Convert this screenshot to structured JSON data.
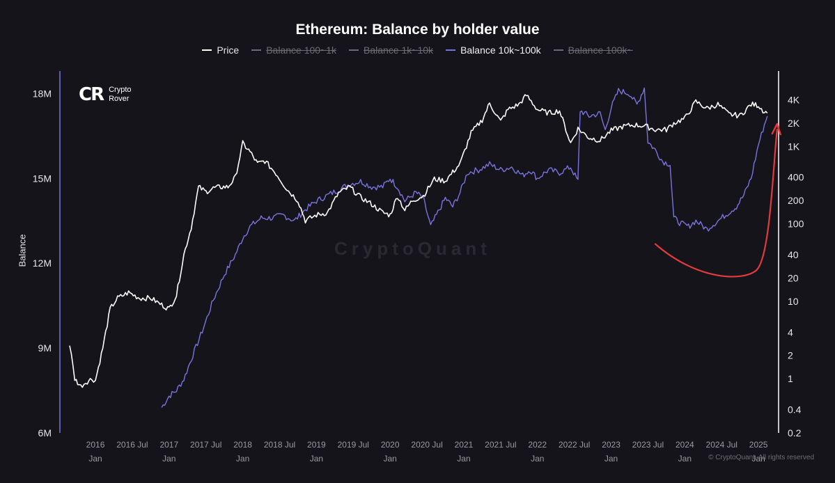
{
  "chart_data": {
    "type": "line",
    "title": "Ethereum: Balance by holder value",
    "ylabel_left": "Balance",
    "ylabel_right": "",
    "legend": [
      {
        "name": "Price",
        "color": "#ffffff",
        "visible": true
      },
      {
        "name": "Balance 100~1k",
        "color": "#6c6b76",
        "visible": false
      },
      {
        "name": "Balance 1k~10k",
        "color": "#6c6b76",
        "visible": false
      },
      {
        "name": "Balance 10k~100k",
        "color": "#7b74e0",
        "visible": true
      },
      {
        "name": "Balance 100k~",
        "color": "#6c6b76",
        "visible": false
      }
    ],
    "x_ticks": [
      {
        "t": 2016.0,
        "label": "2016",
        "sub": "Jan"
      },
      {
        "t": 2016.5,
        "label": "2016 Jul",
        "sub": ""
      },
      {
        "t": 2017.0,
        "label": "2017",
        "sub": "Jan"
      },
      {
        "t": 2017.5,
        "label": "2017 Jul",
        "sub": ""
      },
      {
        "t": 2018.0,
        "label": "2018",
        "sub": "Jan"
      },
      {
        "t": 2018.5,
        "label": "2018 Jul",
        "sub": ""
      },
      {
        "t": 2019.0,
        "label": "2019",
        "sub": "Jan"
      },
      {
        "t": 2019.5,
        "label": "2019 Jul",
        "sub": ""
      },
      {
        "t": 2020.0,
        "label": "2020",
        "sub": "Jan"
      },
      {
        "t": 2020.5,
        "label": "2020 Jul",
        "sub": ""
      },
      {
        "t": 2021.0,
        "label": "2021",
        "sub": "Jan"
      },
      {
        "t": 2021.5,
        "label": "2021 Jul",
        "sub": ""
      },
      {
        "t": 2022.0,
        "label": "2022",
        "sub": "Jan"
      },
      {
        "t": 2022.5,
        "label": "2022 Jul",
        "sub": ""
      },
      {
        "t": 2023.0,
        "label": "2023",
        "sub": "Jan"
      },
      {
        "t": 2023.5,
        "label": "2023 Jul",
        "sub": ""
      },
      {
        "t": 2024.0,
        "label": "2024",
        "sub": "Jan"
      },
      {
        "t": 2024.5,
        "label": "2024 Jul",
        "sub": ""
      },
      {
        "t": 2025.0,
        "label": "2025",
        "sub": "Jan"
      }
    ],
    "xlim": [
      2015.65,
      2025.15
    ],
    "y_left": {
      "ticks": [
        {
          "v": 18,
          "label": "18M"
        },
        {
          "v": 15,
          "label": "15M"
        },
        {
          "v": 12,
          "label": "12M"
        },
        {
          "v": 9,
          "label": "9M"
        },
        {
          "v": 6,
          "label": "6M"
        }
      ],
      "ylim": [
        6,
        18.6
      ],
      "unit": "M"
    },
    "y_right": {
      "scale": "log",
      "ticks": [
        {
          "v": 4000,
          "label": "4K"
        },
        {
          "v": 2000,
          "label": "2K"
        },
        {
          "v": 1000,
          "label": "1K"
        },
        {
          "v": 400,
          "label": "400"
        },
        {
          "v": 200,
          "label": "200"
        },
        {
          "v": 100,
          "label": "100"
        },
        {
          "v": 40,
          "label": "40"
        },
        {
          "v": 20,
          "label": "20"
        },
        {
          "v": 10,
          "label": "10"
        },
        {
          "v": 4,
          "label": "4"
        },
        {
          "v": 2,
          "label": "2"
        },
        {
          "v": 1,
          "label": "1"
        },
        {
          "v": 0.4,
          "label": "0.4"
        },
        {
          "v": 0.2,
          "label": "0.2"
        }
      ],
      "ylim": [
        0.2,
        8000
      ]
    },
    "series": [
      {
        "name": "Balance 10k~100k",
        "axis": "left",
        "color": "#7b74e0",
        "points": [
          [
            2016.9,
            6.9
          ],
          [
            2017.0,
            7.3
          ],
          [
            2017.1,
            7.5
          ],
          [
            2017.2,
            7.9
          ],
          [
            2017.3,
            8.6
          ],
          [
            2017.45,
            9.6
          ],
          [
            2017.6,
            10.7
          ],
          [
            2017.75,
            11.6
          ],
          [
            2017.9,
            12.3
          ],
          [
            2018.0,
            12.9
          ],
          [
            2018.1,
            13.3
          ],
          [
            2018.25,
            13.6
          ],
          [
            2018.4,
            13.6
          ],
          [
            2018.55,
            13.7
          ],
          [
            2018.7,
            13.5
          ],
          [
            2018.85,
            13.9
          ],
          [
            2019.0,
            14.2
          ],
          [
            2019.15,
            14.4
          ],
          [
            2019.3,
            14.6
          ],
          [
            2019.45,
            14.8
          ],
          [
            2019.6,
            14.9
          ],
          [
            2019.75,
            14.7
          ],
          [
            2019.9,
            14.7
          ],
          [
            2020.0,
            15.0
          ],
          [
            2020.1,
            14.7
          ],
          [
            2020.2,
            14.2
          ],
          [
            2020.35,
            14.5
          ],
          [
            2020.45,
            14.3
          ],
          [
            2020.55,
            13.3
          ],
          [
            2020.65,
            13.8
          ],
          [
            2020.75,
            14.3
          ],
          [
            2020.85,
            14.0
          ],
          [
            2020.95,
            14.5
          ],
          [
            2021.05,
            15.2
          ],
          [
            2021.2,
            15.3
          ],
          [
            2021.35,
            15.5
          ],
          [
            2021.5,
            15.3
          ],
          [
            2021.65,
            15.4
          ],
          [
            2021.8,
            15.1
          ],
          [
            2021.9,
            15.3
          ],
          [
            2022.0,
            15.0
          ],
          [
            2022.15,
            15.3
          ],
          [
            2022.3,
            15.2
          ],
          [
            2022.45,
            15.4
          ],
          [
            2022.55,
            14.9
          ],
          [
            2022.58,
            17.4
          ],
          [
            2022.7,
            17.2
          ],
          [
            2022.85,
            17.3
          ],
          [
            2022.92,
            16.7
          ],
          [
            2023.0,
            17.5
          ],
          [
            2023.1,
            18.1
          ],
          [
            2023.25,
            18.0
          ],
          [
            2023.35,
            17.6
          ],
          [
            2023.45,
            18.2
          ],
          [
            2023.5,
            16.3
          ],
          [
            2023.6,
            16.0
          ],
          [
            2023.7,
            15.6
          ],
          [
            2023.8,
            15.5
          ],
          [
            2023.85,
            13.6
          ],
          [
            2023.95,
            13.4
          ],
          [
            2024.05,
            13.3
          ],
          [
            2024.15,
            13.5
          ],
          [
            2024.3,
            13.2
          ],
          [
            2024.45,
            13.5
          ],
          [
            2024.6,
            13.8
          ],
          [
            2024.7,
            14.0
          ],
          [
            2024.8,
            14.4
          ],
          [
            2024.9,
            15.0
          ],
          [
            2025.0,
            16.2
          ],
          [
            2025.08,
            16.9
          ],
          [
            2025.12,
            17.2
          ]
        ]
      },
      {
        "name": "Price",
        "axis": "right",
        "color": "#ffffff",
        "points": [
          [
            2015.65,
            2.8
          ],
          [
            2015.72,
            1.0
          ],
          [
            2015.8,
            0.8
          ],
          [
            2015.87,
            0.9
          ],
          [
            2015.95,
            1.0
          ],
          [
            2016.0,
            0.95
          ],
          [
            2016.1,
            2.5
          ],
          [
            2016.2,
            8.0
          ],
          [
            2016.3,
            11.0
          ],
          [
            2016.45,
            13.0
          ],
          [
            2016.6,
            11.0
          ],
          [
            2016.75,
            11.0
          ],
          [
            2016.9,
            9.0
          ],
          [
            2017.0,
            8.0
          ],
          [
            2017.1,
            12.0
          ],
          [
            2017.2,
            40.0
          ],
          [
            2017.3,
            90.0
          ],
          [
            2017.4,
            300.0
          ],
          [
            2017.5,
            260.0
          ],
          [
            2017.6,
            290.0
          ],
          [
            2017.7,
            300.0
          ],
          [
            2017.8,
            300.0
          ],
          [
            2017.9,
            400.0
          ],
          [
            2018.0,
            1100.0
          ],
          [
            2018.1,
            850.0
          ],
          [
            2018.2,
            600.0
          ],
          [
            2018.3,
            650.0
          ],
          [
            2018.45,
            450.0
          ],
          [
            2018.6,
            280.0
          ],
          [
            2018.75,
            200.0
          ],
          [
            2018.85,
            110.0
          ],
          [
            2019.0,
            130.0
          ],
          [
            2019.15,
            140.0
          ],
          [
            2019.3,
            250.0
          ],
          [
            2019.45,
            300.0
          ],
          [
            2019.6,
            220.0
          ],
          [
            2019.75,
            180.0
          ],
          [
            2019.9,
            140.0
          ],
          [
            2020.0,
            130.0
          ],
          [
            2020.1,
            230.0
          ],
          [
            2020.2,
            150.0
          ],
          [
            2020.3,
            200.0
          ],
          [
            2020.45,
            230.0
          ],
          [
            2020.6,
            380.0
          ],
          [
            2020.75,
            360.0
          ],
          [
            2020.95,
            600.0
          ],
          [
            2021.1,
            1500.0
          ],
          [
            2021.25,
            2200.0
          ],
          [
            2021.35,
            3600.0
          ],
          [
            2021.5,
            2100.0
          ],
          [
            2021.6,
            3000.0
          ],
          [
            2021.75,
            3500.0
          ],
          [
            2021.85,
            4600.0
          ],
          [
            2022.0,
            3000.0
          ],
          [
            2022.15,
            2700.0
          ],
          [
            2022.3,
            2900.0
          ],
          [
            2022.45,
            1100.0
          ],
          [
            2022.55,
            1700.0
          ],
          [
            2022.7,
            1300.0
          ],
          [
            2022.85,
            1200.0
          ],
          [
            2023.0,
            1600.0
          ],
          [
            2023.15,
            1800.0
          ],
          [
            2023.3,
            1900.0
          ],
          [
            2023.45,
            1850.0
          ],
          [
            2023.6,
            1650.0
          ],
          [
            2023.75,
            1650.0
          ],
          [
            2023.85,
            2000.0
          ],
          [
            2024.0,
            2300.0
          ],
          [
            2024.15,
            3800.0
          ],
          [
            2024.3,
            3100.0
          ],
          [
            2024.45,
            3500.0
          ],
          [
            2024.6,
            2600.0
          ],
          [
            2024.75,
            2500.0
          ],
          [
            2024.9,
            3500.0
          ],
          [
            2025.0,
            3400.0
          ],
          [
            2025.08,
            2800.0
          ],
          [
            2025.12,
            2700.0
          ]
        ]
      }
    ],
    "annotation": {
      "type": "curved-arrow",
      "color": "#e23b3b",
      "from": [
        2023.6,
        55
      ],
      "via": [
        2024.4,
        25
      ],
      "to": [
        2025.12,
        1800
      ]
    },
    "grid": false,
    "legend_position": "top-center"
  },
  "branding": {
    "logo_mark": "CR",
    "logo_line1": "Crypto",
    "logo_line2": "Rover",
    "watermark": "CryptoQuant",
    "copyright": "© CryptoQuant. All rights reserved"
  }
}
